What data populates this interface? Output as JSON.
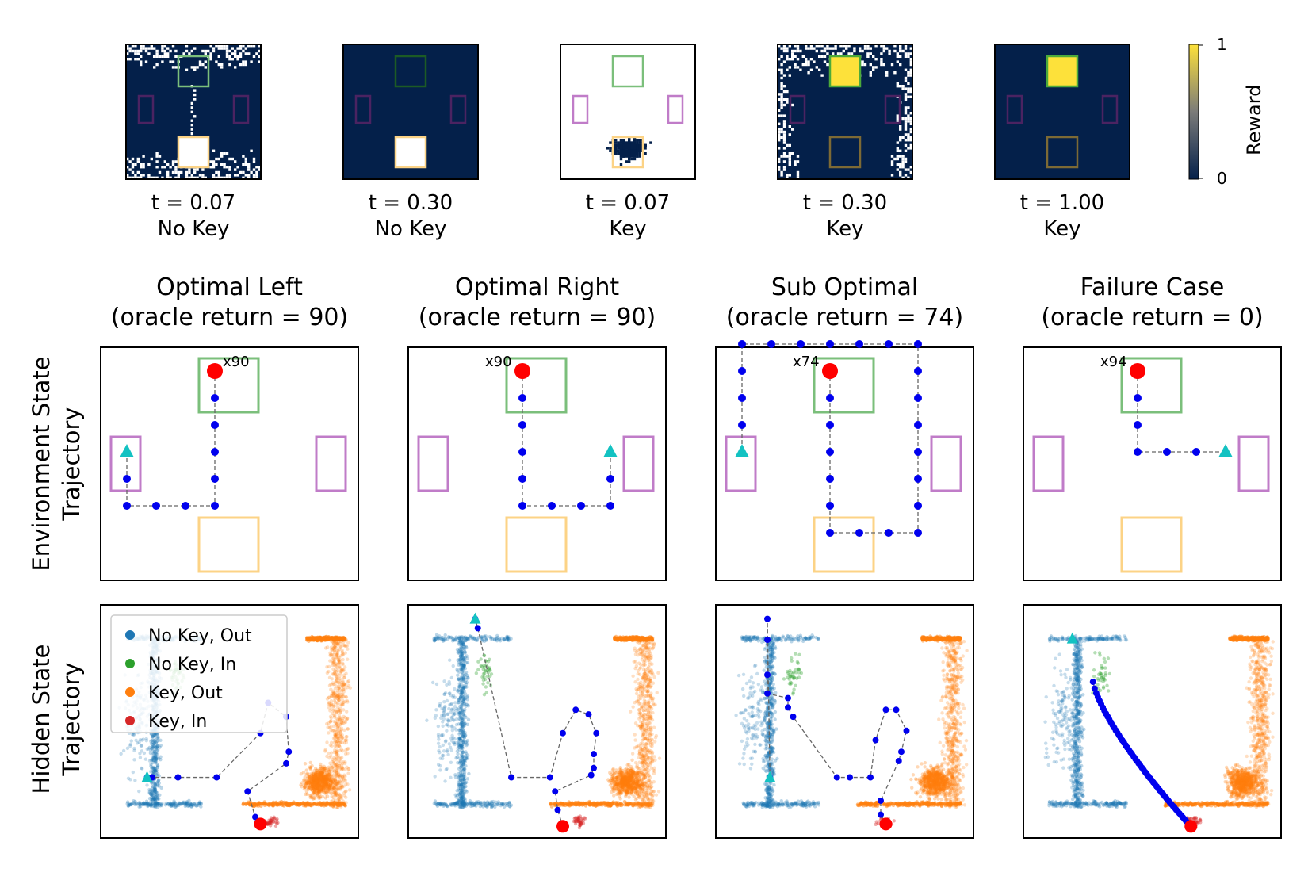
{
  "colors": {
    "background_dark": "#04204a",
    "goal_green": "#7bbf7b",
    "key_orange": "#fcd386",
    "door_purple": "#c07cc8",
    "reward_yellow": "#fde13a",
    "traj_blue": "#0000ee",
    "start_cyan": "#13c2c2",
    "end_red": "#ff0000",
    "cls_no_key_out": "#1f77b4",
    "cls_no_key_in": "#2ca02c",
    "cls_key_out": "#ff7f0e",
    "cls_key_in": "#d62728"
  },
  "reward_maps": [
    {
      "t_label": "t = 0.07",
      "key_label": "No Key"
    },
    {
      "t_label": "t = 0.30",
      "key_label": "No Key"
    },
    {
      "t_label": "t = 0.07",
      "key_label": "Key"
    },
    {
      "t_label": "t = 0.30",
      "key_label": "Key"
    },
    {
      "t_label": "t = 1.00",
      "key_label": "Key"
    }
  ],
  "colorbar": {
    "label": "Reward",
    "max_label": "1",
    "min_label": "0"
  },
  "row_labels": {
    "env": [
      "Environment State",
      "Trajectory"
    ],
    "hidden": [
      "Hidden State",
      "Trajectory"
    ]
  },
  "columns": [
    {
      "title": "Optimal Left",
      "subtitle": "(oracle return = 90)",
      "repeat_label": "x90"
    },
    {
      "title": "Optimal Right",
      "subtitle": "(oracle return = 90)",
      "repeat_label": "x90"
    },
    {
      "title": "Sub Optimal",
      "subtitle": "(oracle return = 74)",
      "repeat_label": "x74"
    },
    {
      "title": "Failure Case",
      "subtitle": "(oracle return = 0)",
      "repeat_label": "x94"
    }
  ],
  "legend": [
    {
      "label": "No Key, Out",
      "color": "#1f77b4"
    },
    {
      "label": "No Key, In",
      "color": "#2ca02c"
    },
    {
      "label": "Key, Out",
      "color": "#ff7f0e"
    },
    {
      "label": "Key, In",
      "color": "#d62728"
    }
  ],
  "chart_data": {
    "type": "scatter",
    "env_trajectories": [
      [
        [
          3,
          6
        ],
        [
          3,
          5
        ],
        [
          3,
          4
        ],
        [
          3,
          3
        ],
        [
          3,
          2
        ],
        [
          3,
          1
        ],
        [
          2,
          1
        ],
        [
          1,
          1
        ],
        [
          0,
          1
        ],
        [
          0,
          2
        ],
        [
          0,
          3
        ]
      ],
      [
        [
          3,
          6
        ],
        [
          3,
          5
        ],
        [
          3,
          4
        ],
        [
          3,
          3
        ],
        [
          3,
          2
        ],
        [
          3,
          1
        ],
        [
          4,
          1
        ],
        [
          5,
          1
        ],
        [
          6,
          1
        ],
        [
          6,
          2
        ],
        [
          6,
          3
        ]
      ],
      [
        [
          3,
          6
        ],
        [
          3,
          5
        ],
        [
          3,
          4
        ],
        [
          3,
          3
        ],
        [
          3,
          2
        ],
        [
          3,
          1
        ],
        [
          3,
          0
        ],
        [
          4,
          0
        ],
        [
          5,
          0
        ],
        [
          6,
          0
        ],
        [
          6,
          1
        ],
        [
          6,
          2
        ],
        [
          6,
          3
        ],
        [
          6,
          4
        ],
        [
          6,
          5
        ],
        [
          6,
          6
        ],
        [
          6,
          7
        ],
        [
          5,
          7
        ],
        [
          4,
          7
        ],
        [
          3,
          7
        ],
        [
          2,
          7
        ],
        [
          1,
          7
        ],
        [
          0,
          7
        ],
        [
          0,
          6
        ],
        [
          0,
          5
        ],
        [
          0,
          4
        ],
        [
          0,
          3
        ]
      ],
      [
        [
          3,
          6
        ],
        [
          3,
          5
        ],
        [
          3,
          4
        ],
        [
          3,
          3
        ],
        [
          4,
          3
        ],
        [
          5,
          3
        ],
        [
          6,
          3
        ]
      ]
    ],
    "hidden_trajectories": [
      [
        [
          0.62,
          0.06
        ],
        [
          0.6,
          0.09
        ],
        [
          0.57,
          0.2
        ],
        [
          0.72,
          0.32
        ],
        [
          0.73,
          0.37
        ],
        [
          0.72,
          0.52
        ],
        [
          0.65,
          0.58
        ],
        [
          0.62,
          0.45
        ],
        [
          0.45,
          0.26
        ],
        [
          0.3,
          0.26
        ],
        [
          0.2,
          0.26
        ],
        [
          0.18,
          0.26
        ]
      ],
      [
        [
          0.6,
          0.05
        ],
        [
          0.58,
          0.12
        ],
        [
          0.57,
          0.2
        ],
        [
          0.71,
          0.27
        ],
        [
          0.72,
          0.3
        ],
        [
          0.72,
          0.36
        ],
        [
          0.73,
          0.45
        ],
        [
          0.7,
          0.53
        ],
        [
          0.65,
          0.55
        ],
        [
          0.6,
          0.45
        ],
        [
          0.55,
          0.26
        ],
        [
          0.4,
          0.26
        ],
        [
          0.27,
          0.9
        ],
        [
          0.26,
          0.94
        ]
      ],
      [
        [
          0.66,
          0.06
        ],
        [
          0.64,
          0.1
        ],
        [
          0.64,
          0.16
        ],
        [
          0.71,
          0.33
        ],
        [
          0.72,
          0.37
        ],
        [
          0.74,
          0.46
        ],
        [
          0.7,
          0.55
        ],
        [
          0.66,
          0.55
        ],
        [
          0.62,
          0.42
        ],
        [
          0.6,
          0.26
        ],
        [
          0.52,
          0.26
        ],
        [
          0.47,
          0.26
        ],
        [
          0.3,
          0.52
        ],
        [
          0.28,
          0.56
        ],
        [
          0.28,
          0.6
        ],
        [
          0.2,
          0.62
        ],
        [
          0.2,
          0.7
        ],
        [
          0.2,
          0.85
        ],
        [
          0.2,
          0.94
        ],
        [
          0.21,
          0.26
        ]
      ],
      [
        [
          0.65,
          0.05
        ]
      ]
    ]
  }
}
